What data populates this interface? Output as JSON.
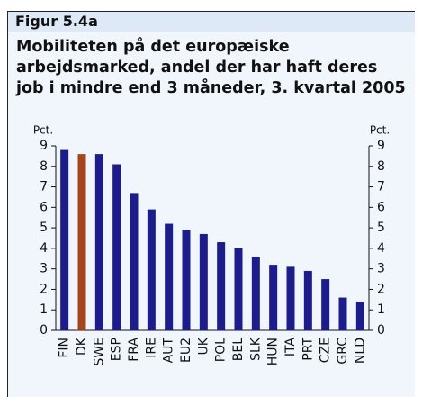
{
  "chart_data": {
    "type": "bar",
    "figure_label": "Figur 5.4a",
    "title": "Mobiliteten på det europæiske arbejdsmarked, andel der har haft deres job i mindre end 3 måneder, 3. kvartal 2005",
    "ylabel": "Pct.",
    "y2label": "Pct.",
    "categories": [
      "FIN",
      "DK",
      "SWE",
      "ESP",
      "FRA",
      "IRE",
      "AUT",
      "EU2",
      "UK",
      "POL",
      "BEL",
      "SLK",
      "HUN",
      "ITA",
      "PRT",
      "CZE",
      "GRC",
      "NLD"
    ],
    "values": [
      8.8,
      8.6,
      8.6,
      8.1,
      6.7,
      5.9,
      5.2,
      4.9,
      4.7,
      4.3,
      4.0,
      3.6,
      3.2,
      3.1,
      2.9,
      2.5,
      1.6,
      1.4
    ],
    "colors": [
      "#1c1c8a",
      "#a3451f",
      "#1c1c8a",
      "#1c1c8a",
      "#1c1c8a",
      "#1c1c8a",
      "#1c1c8a",
      "#1c1c8a",
      "#1c1c8a",
      "#1c1c8a",
      "#1c1c8a",
      "#1c1c8a",
      "#1c1c8a",
      "#1c1c8a",
      "#1c1c8a",
      "#1c1c8a",
      "#1c1c8a",
      "#1c1c8a"
    ],
    "ylim": [
      0,
      9
    ],
    "yticks": [
      0,
      1,
      2,
      3,
      4,
      5,
      6,
      7,
      8,
      9
    ],
    "y2lim": [
      0,
      9
    ],
    "y2ticks": [
      0,
      1,
      2,
      3,
      4,
      5,
      6,
      7,
      8,
      9
    ]
  }
}
